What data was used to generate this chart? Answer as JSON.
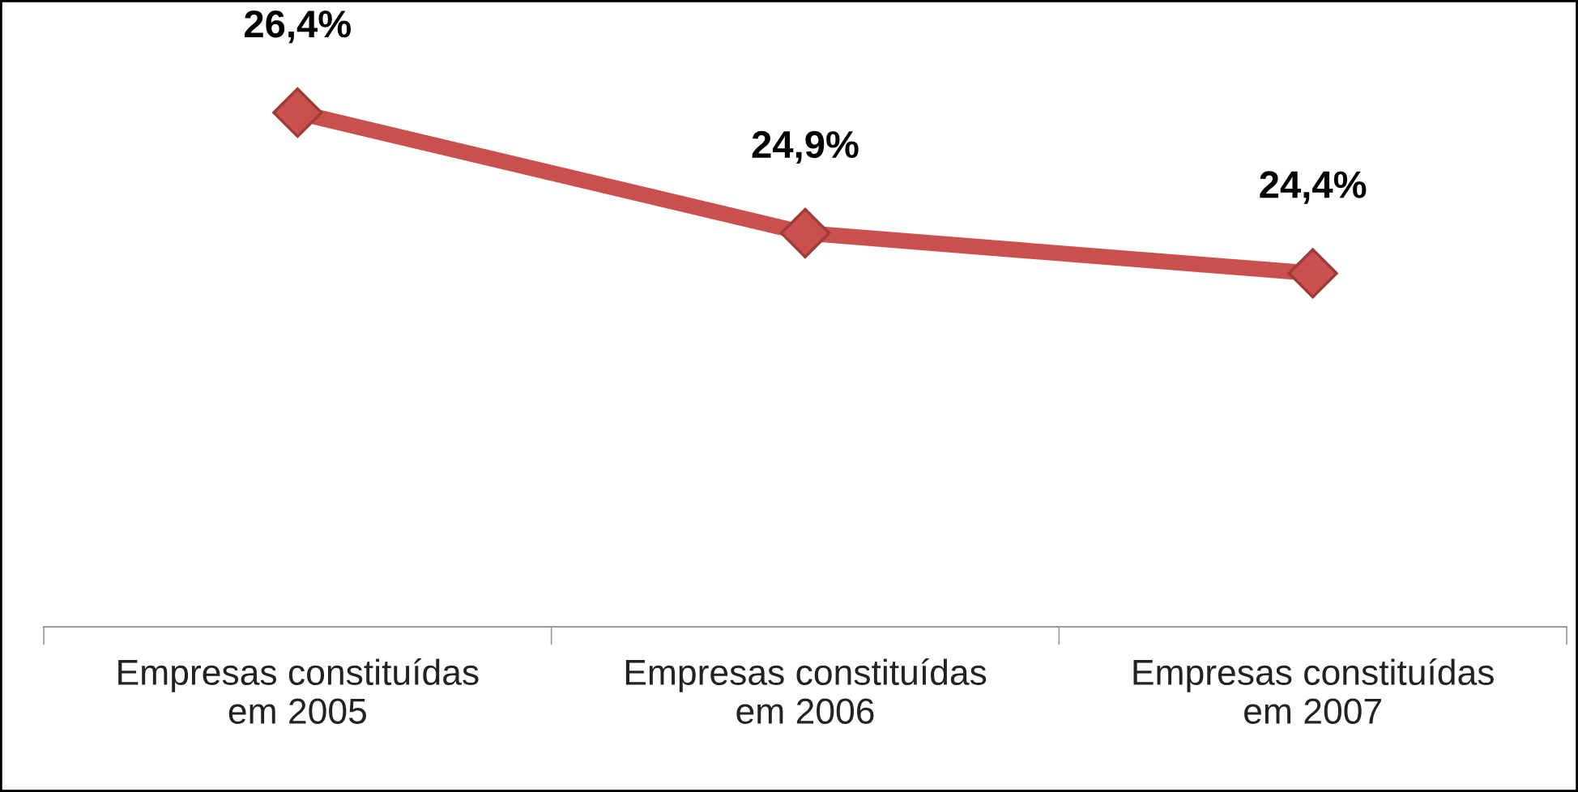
{
  "chart_data": {
    "type": "line",
    "categories": [
      "Empresas constituídas\nem 2005",
      "Empresas constituídas\nem 2006",
      "Empresas constituídas\nem 2007"
    ],
    "series": [
      {
        "color": "#c9504d",
        "values": [
          26.4,
          24.9,
          24.4
        ],
        "value_labels": [
          "26,4%",
          "24,9%",
          "24,4%"
        ]
      }
    ],
    "tick_labels": "x",
    "marker": "diamond",
    "line_style": "solid",
    "grid": false,
    "legend": false
  }
}
